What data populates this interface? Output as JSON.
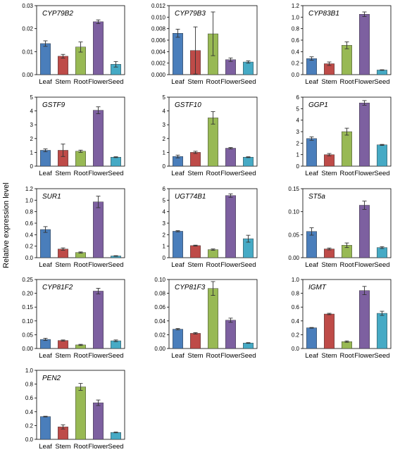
{
  "ylabel": "Relative expression level",
  "colors": {
    "Leaf": "#4a7ebb",
    "Stem": "#be4b48",
    "Root": "#98b954",
    "Flower": "#7d60a0",
    "Seed": "#46aac5",
    "axis": "#000000",
    "error_bar": "#333333"
  },
  "chart_data": [
    {
      "type": "bar",
      "title": "CYP79B2",
      "categories": [
        "Leaf",
        "Stem",
        "Root",
        "Flower",
        "Seed"
      ],
      "values": [
        0.0135,
        0.008,
        0.012,
        0.023,
        0.0045
      ],
      "errors": [
        0.0012,
        0.0008,
        0.0022,
        0.0008,
        0.0012
      ],
      "ylim": [
        0,
        0.03
      ],
      "yticks": [
        "0.00",
        "0.01",
        "0.02",
        "0.03"
      ]
    },
    {
      "type": "bar",
      "title": "CYP79B3",
      "categories": [
        "Leaf",
        "Stem",
        "Root",
        "Flower",
        "Seed"
      ],
      "values": [
        0.0072,
        0.0042,
        0.0071,
        0.0026,
        0.0022
      ],
      "errors": [
        0.0007,
        0.0041,
        0.0038,
        0.0003,
        0.0002
      ],
      "ylim": [
        0,
        0.012
      ],
      "yticks": [
        "0.000",
        "0.002",
        "0.004",
        "0.006",
        "0.008",
        "0.010",
        "0.012"
      ]
    },
    {
      "type": "bar",
      "title": "CYP83B1",
      "categories": [
        "Leaf",
        "Stem",
        "Root",
        "Flower",
        "Seed"
      ],
      "values": [
        0.28,
        0.19,
        0.51,
        1.05,
        0.08
      ],
      "errors": [
        0.03,
        0.03,
        0.06,
        0.04,
        0.005
      ],
      "ylim": [
        0,
        1.2
      ],
      "yticks": [
        "0.0",
        "0.2",
        "0.4",
        "0.6",
        "0.8",
        "1.0",
        "1.2"
      ]
    },
    {
      "type": "bar",
      "title": "GSTF9",
      "categories": [
        "Leaf",
        "Stem",
        "Root",
        "Flower",
        "Seed"
      ],
      "values": [
        1.15,
        1.15,
        1.08,
        4.05,
        0.65
      ],
      "errors": [
        0.1,
        0.45,
        0.08,
        0.25,
        0.03
      ],
      "ylim": [
        0,
        5
      ],
      "yticks": [
        "0",
        "1",
        "2",
        "3",
        "4",
        "5"
      ]
    },
    {
      "type": "bar",
      "title": "GSTF10",
      "categories": [
        "Leaf",
        "Stem",
        "Root",
        "Flower",
        "Seed"
      ],
      "values": [
        0.7,
        1.0,
        3.5,
        1.3,
        0.65
      ],
      "errors": [
        0.1,
        0.08,
        0.45,
        0.05,
        0.03
      ],
      "ylim": [
        0,
        5
      ],
      "yticks": [
        "0",
        "1",
        "2",
        "3",
        "4",
        "5"
      ]
    },
    {
      "type": "bar",
      "title": "GGP1",
      "categories": [
        "Leaf",
        "Stem",
        "Root",
        "Flower",
        "Seed"
      ],
      "values": [
        2.4,
        1.0,
        3.0,
        5.5,
        1.85
      ],
      "errors": [
        0.15,
        0.1,
        0.3,
        0.2,
        0.04
      ],
      "ylim": [
        0,
        6
      ],
      "yticks": [
        "0",
        "1",
        "2",
        "3",
        "4",
        "5",
        "6"
      ]
    },
    {
      "type": "bar",
      "title": "SUR1",
      "categories": [
        "Leaf",
        "Stem",
        "Root",
        "Flower",
        "Seed"
      ],
      "values": [
        0.49,
        0.15,
        0.09,
        0.97,
        0.03
      ],
      "errors": [
        0.05,
        0.02,
        0.01,
        0.1,
        0.005
      ],
      "ylim": [
        0,
        1.2
      ],
      "yticks": [
        "0.0",
        "0.2",
        "0.4",
        "0.6",
        "0.8",
        "1.0",
        "1.2"
      ]
    },
    {
      "type": "bar",
      "title": "UGT74B1",
      "categories": [
        "Leaf",
        "Stem",
        "Root",
        "Flower",
        "Seed"
      ],
      "values": [
        2.3,
        1.05,
        0.7,
        5.4,
        1.65
      ],
      "errors": [
        0.05,
        0.04,
        0.06,
        0.15,
        0.3
      ],
      "ylim": [
        0,
        6
      ],
      "yticks": [
        "0",
        "1",
        "2",
        "3",
        "4",
        "5",
        "6"
      ]
    },
    {
      "type": "bar",
      "title": "ST5a",
      "categories": [
        "Leaf",
        "Stem",
        "Root",
        "Flower",
        "Seed"
      ],
      "values": [
        0.057,
        0.019,
        0.027,
        0.114,
        0.022
      ],
      "errors": [
        0.008,
        0.002,
        0.005,
        0.009,
        0.002
      ],
      "ylim": [
        0,
        0.15
      ],
      "yticks": [
        "0.00",
        "0.05",
        "0.10",
        "0.15"
      ]
    },
    {
      "type": "bar",
      "title": "CYP81F2",
      "categories": [
        "Leaf",
        "Stem",
        "Root",
        "Flower",
        "Seed"
      ],
      "values": [
        0.033,
        0.029,
        0.013,
        0.208,
        0.028
      ],
      "errors": [
        0.004,
        0.002,
        0.002,
        0.01,
        0.003
      ],
      "ylim": [
        0,
        0.25
      ],
      "yticks": [
        "0.00",
        "0.05",
        "0.10",
        "0.15",
        "0.20",
        "0.25"
      ]
    },
    {
      "type": "bar",
      "title": "CYP81F3",
      "categories": [
        "Leaf",
        "Stem",
        "Root",
        "Flower",
        "Seed"
      ],
      "values": [
        0.028,
        0.022,
        0.087,
        0.041,
        0.008
      ],
      "errors": [
        0.001,
        0.001,
        0.01,
        0.003,
        0.0005
      ],
      "ylim": [
        0,
        0.1
      ],
      "yticks": [
        "0.00",
        "0.02",
        "0.04",
        "0.06",
        "0.08",
        "0.10"
      ]
    },
    {
      "type": "bar",
      "title": "IGMT",
      "categories": [
        "Leaf",
        "Stem",
        "Root",
        "Flower",
        "Seed"
      ],
      "values": [
        0.3,
        0.5,
        0.1,
        0.84,
        0.51
      ],
      "errors": [
        0.005,
        0.01,
        0.01,
        0.06,
        0.03
      ],
      "ylim": [
        0,
        1.0
      ],
      "yticks": [
        "0.0",
        "0.2",
        "0.4",
        "0.6",
        "0.8",
        "1.0"
      ]
    },
    {
      "type": "bar",
      "title": "PEN2",
      "categories": [
        "Leaf",
        "Stem",
        "Root",
        "Flower",
        "Seed"
      ],
      "values": [
        0.33,
        0.18,
        0.76,
        0.53,
        0.1
      ],
      "errors": [
        0.005,
        0.03,
        0.05,
        0.04,
        0.005
      ],
      "ylim": [
        0,
        1.0
      ],
      "yticks": [
        "0.0",
        "0.2",
        "0.4",
        "0.6",
        "0.8",
        "1.0"
      ]
    }
  ]
}
